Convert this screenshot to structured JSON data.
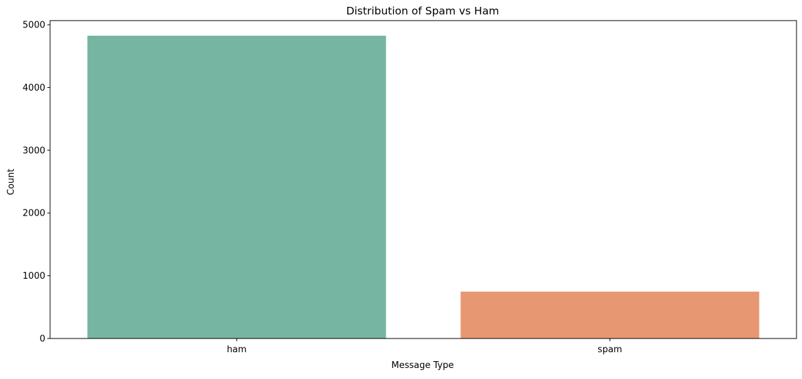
{
  "chart_data": {
    "type": "bar",
    "title": "Distribution of Spam vs Ham",
    "xlabel": "Message Type",
    "ylabel": "Count",
    "categories": [
      "ham",
      "spam"
    ],
    "values": [
      4825,
      747
    ],
    "colors": [
      "#75b5a1",
      "#e89773"
    ],
    "ylim": [
      0,
      5066
    ],
    "yticks": [
      0,
      1000,
      2000,
      3000,
      4000,
      5000
    ],
    "ytick_labels": [
      "0",
      "1000",
      "2000",
      "3000",
      "4000",
      "5000"
    ],
    "grid": false,
    "legend": "none"
  }
}
